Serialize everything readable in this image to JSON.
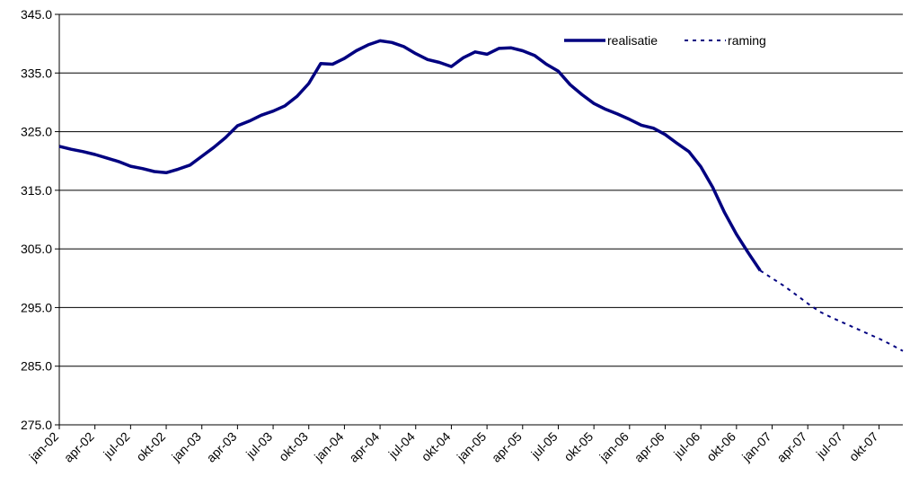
{
  "chart_data": {
    "type": "line",
    "categories": [
      "jan-02",
      null,
      null,
      "apr-02",
      null,
      null,
      "jul-02",
      null,
      null,
      "okt-02",
      null,
      null,
      "jan-03",
      null,
      null,
      "apr-03",
      null,
      null,
      "jul-03",
      null,
      null,
      "okt-03",
      null,
      null,
      "jan-04",
      null,
      null,
      "apr-04",
      null,
      null,
      "jul-04",
      null,
      null,
      "okt-04",
      null,
      null,
      "jan-05",
      null,
      null,
      "apr-05",
      null,
      null,
      "jul-05",
      null,
      null,
      "okt-05",
      null,
      null,
      "jan-06",
      null,
      null,
      "apr-06",
      null,
      null,
      "jul-06",
      null,
      null,
      "okt-06",
      null,
      null,
      "jan-07",
      null,
      null,
      "apr-07",
      null,
      null,
      "jul-07",
      null,
      null,
      "okt-07",
      null,
      null
    ],
    "series": [
      {
        "name": "realisatie",
        "color": "#000080",
        "dash": false,
        "values": [
          322.5,
          322.0,
          321.6,
          321.1,
          320.5,
          319.9,
          319.1,
          318.7,
          318.2,
          318.0,
          318.6,
          319.3,
          320.8,
          322.3,
          324.0,
          326.0,
          326.8,
          327.8,
          328.5,
          329.4,
          331.0,
          333.2,
          336.6,
          336.5,
          337.5,
          338.8,
          339.8,
          340.5,
          340.2,
          339.5,
          338.3,
          337.3,
          336.8,
          336.1,
          337.6,
          338.6,
          338.2,
          339.2,
          339.3,
          338.8,
          338.0,
          336.5,
          335.3,
          333.0,
          331.3,
          329.8,
          328.8,
          328.0,
          327.1,
          326.1,
          325.6,
          324.5,
          323.0,
          321.6,
          319.0,
          315.5,
          311.2,
          307.5,
          304.3,
          301.3,
          null,
          null,
          null,
          null,
          null,
          null,
          null,
          null,
          null,
          null,
          null,
          null
        ]
      },
      {
        "name": "raming",
        "color": "#000080",
        "dash": true,
        "values": [
          null,
          null,
          null,
          null,
          null,
          null,
          null,
          null,
          null,
          null,
          null,
          null,
          null,
          null,
          null,
          null,
          null,
          null,
          null,
          null,
          null,
          null,
          null,
          null,
          null,
          null,
          null,
          null,
          null,
          null,
          null,
          null,
          null,
          null,
          null,
          null,
          null,
          null,
          null,
          null,
          null,
          null,
          null,
          null,
          null,
          null,
          null,
          null,
          null,
          null,
          null,
          null,
          null,
          null,
          null,
          null,
          null,
          null,
          null,
          301.3,
          300.0,
          298.7,
          297.2,
          295.7,
          294.3,
          293.3,
          292.4,
          291.5,
          290.6,
          289.7,
          288.7,
          287.6
        ]
      }
    ],
    "ylim": [
      275,
      345
    ],
    "yticks": [
      {
        "value": 275,
        "label": "275.0"
      },
      {
        "value": 285,
        "label": "285.0"
      },
      {
        "value": 295,
        "label": "295.0"
      },
      {
        "value": 305,
        "label": "305.0"
      },
      {
        "value": 315,
        "label": "315.0"
      },
      {
        "value": 325,
        "label": "325.0"
      },
      {
        "value": 335,
        "label": "335.0"
      },
      {
        "value": 345,
        "label": "345.0"
      }
    ],
    "grid": true,
    "legend": "top-right"
  }
}
